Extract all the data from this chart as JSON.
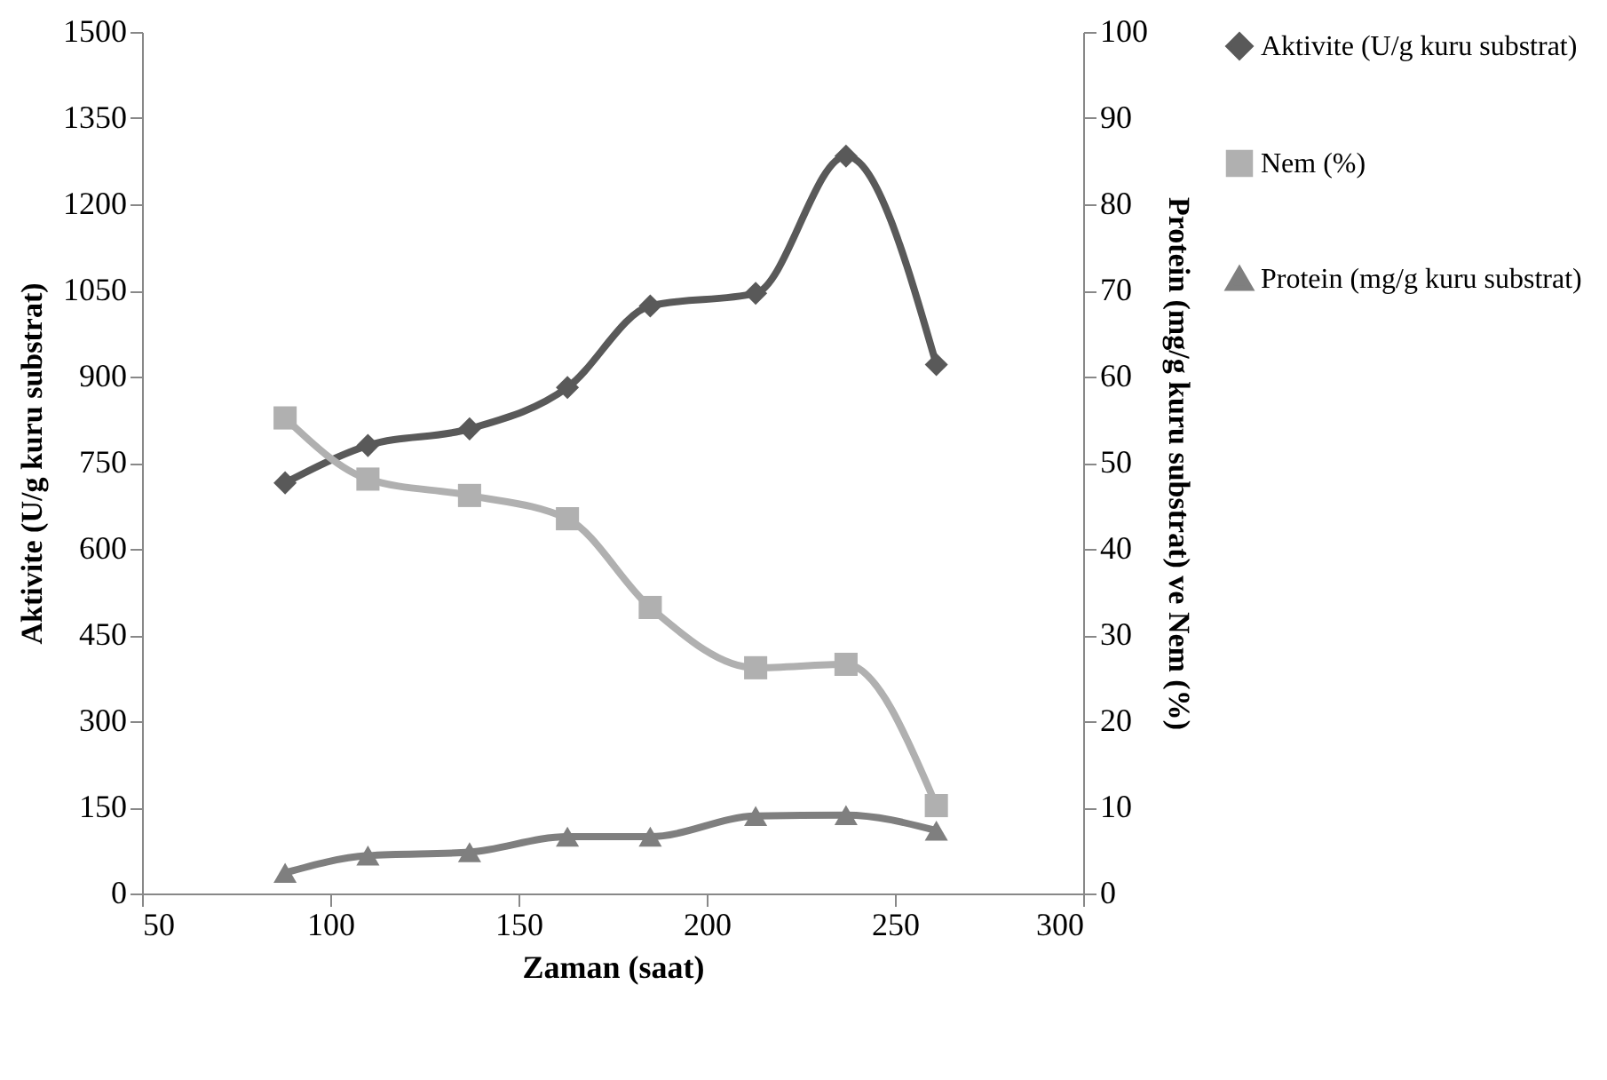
{
  "chart_data": {
    "type": "line",
    "xlabel": "Zaman (saat)",
    "ylabel": "Aktivite (U/g kuru substrat)",
    "y2label": "Protein (mg/g kuru substrat) ve Nem (%)",
    "x": [
      88,
      110,
      137,
      163,
      185,
      213,
      237,
      261
    ],
    "series": [
      {
        "name": "Aktivite (U/g kuru substrat)",
        "color": "#595959",
        "marker": "diamond",
        "values": [
          715,
          780,
          809,
          881,
          1023,
          1045,
          1284,
          921
        ]
      },
      {
        "name": "Nem (%)",
        "color": "#b0b0b0",
        "marker": "square",
        "axis": "y2",
        "values": [
          55.2,
          48.1,
          46.2,
          43.5,
          33.2,
          26.2,
          26.6,
          10.2
        ]
      },
      {
        "name": "Protein (mg/g kuru substrat)",
        "color": "#7f7f7f",
        "marker": "triangle",
        "axis": "y2",
        "values": [
          2.4,
          4.4,
          4.8,
          6.6,
          6.6,
          9.0,
          9.1,
          7.3
        ]
      }
    ],
    "xlim": [
      50,
      300
    ],
    "xticks": [
      50,
      100,
      150,
      200,
      250,
      300
    ],
    "ylim": [
      0,
      1500
    ],
    "yticks": [
      0,
      150,
      300,
      450,
      600,
      750,
      900,
      1050,
      1200,
      1350,
      1500
    ],
    "y2lim": [
      0,
      100
    ],
    "y2ticks": [
      0,
      10,
      20,
      30,
      40,
      50,
      60,
      70,
      80,
      90,
      100
    ],
    "grid": false,
    "legend": "right",
    "line_style": "solid"
  }
}
